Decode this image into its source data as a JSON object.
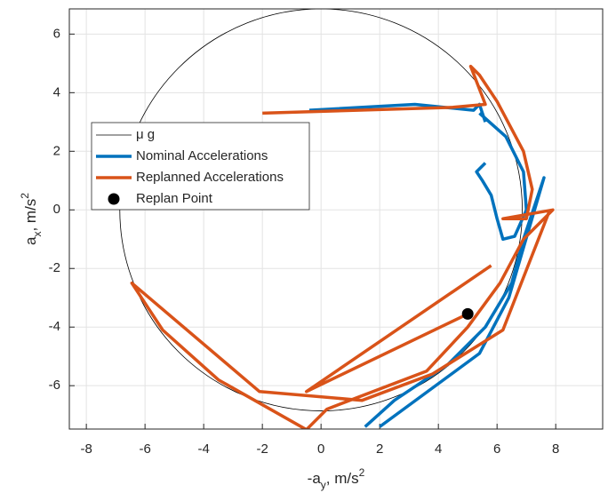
{
  "chart_data": {
    "type": "line",
    "xlabel": {
      "base": "-a",
      "sub": "y",
      "text": ", m/s",
      "sup": "2"
    },
    "ylabel": {
      "base": "a",
      "sub": "x",
      "text": ", m/s",
      "sup": "2"
    },
    "xlim": [
      -8.58,
      9.6
    ],
    "ylim": [
      -7.48,
      6.86
    ],
    "xticks": [
      -8,
      -6,
      -4,
      -2,
      0,
      2,
      4,
      6,
      8
    ],
    "yticks": [
      -6,
      -4,
      -2,
      0,
      2,
      4,
      6
    ],
    "grid": true,
    "legend": "upper left",
    "series": [
      {
        "name": "μ g",
        "type": "circle",
        "color": "#000000",
        "radius": 6.86
      },
      {
        "name": "Nominal Accelerations",
        "type": "line",
        "color": "#0072bd",
        "x": [
          -0.4,
          3.2,
          5.2,
          5.4,
          5.6,
          null,
          5.4,
          6.3,
          6.9,
          7.0,
          6.6,
          6.2,
          6.0,
          5.8,
          5.5,
          5.3,
          5.6,
          null,
          1.5,
          2.5,
          4.3,
          5.6,
          6.5,
          6.9,
          7.6,
          6.4,
          5.4,
          2.0
        ],
        "y": [
          3.4,
          3.6,
          3.4,
          3.6,
          3.0,
          null,
          3.3,
          2.5,
          1.3,
          0.0,
          -0.9,
          -1.0,
          -0.3,
          0.5,
          1.0,
          1.3,
          1.6,
          null,
          -7.4,
          -6.5,
          -5.3,
          -4.0,
          -2.5,
          -1.0,
          1.1,
          -3.0,
          -4.9,
          -7.4
        ]
      },
      {
        "name": "Replanned Accelerations",
        "type": "line",
        "color": "#d95319",
        "x": [
          -2.0,
          4.5,
          5.6,
          5.1,
          5.4,
          6.0,
          6.9,
          7.2,
          7.0,
          6.2,
          7.9,
          6.9,
          6.1,
          5.0,
          3.6,
          0.2,
          -0.5,
          -3.5,
          -5.4,
          -6.45,
          -2.1,
          1.4,
          3.8,
          6.2,
          7.8,
          null,
          5.0,
          -0.5,
          5.8
        ],
        "y": [
          3.3,
          3.5,
          3.6,
          4.9,
          4.6,
          3.7,
          2.0,
          0.7,
          -0.3,
          -0.3,
          0.0,
          -1.0,
          -2.5,
          -4.0,
          -5.5,
          -6.8,
          -7.5,
          -5.8,
          -4.1,
          -2.5,
          -6.2,
          -6.5,
          -5.6,
          -4.1,
          0.0,
          null,
          -3.55,
          -6.2,
          -1.9
        ]
      },
      {
        "name": "Replan Point",
        "type": "scatter",
        "color": "#000000",
        "x": [
          5.0
        ],
        "y": [
          -3.55
        ]
      }
    ]
  }
}
